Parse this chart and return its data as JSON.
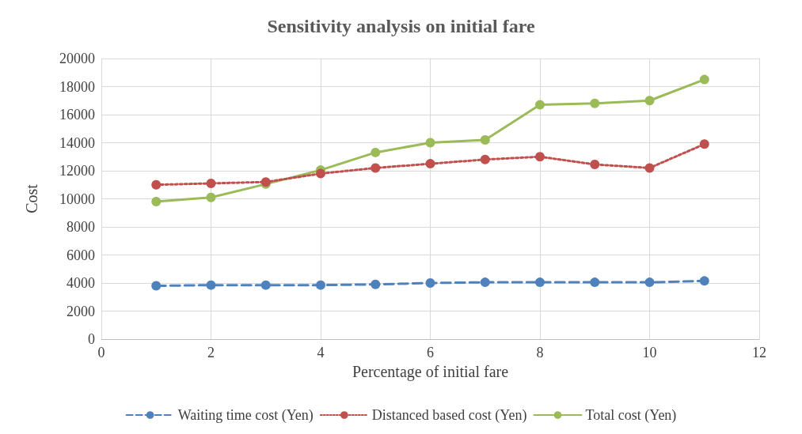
{
  "chart_data": {
    "type": "line",
    "title": "Sensitivity analysis on initial fare",
    "xlabel": "Percentage of initial fare",
    "ylabel": "Cost",
    "x": [
      1,
      2,
      3,
      4,
      5,
      6,
      7,
      8,
      9,
      10,
      11
    ],
    "xlim": [
      0,
      12
    ],
    "xticks": [
      0,
      2,
      4,
      6,
      8,
      10,
      12
    ],
    "ylim": [
      0,
      20000
    ],
    "yticks": [
      0,
      2000,
      4000,
      6000,
      8000,
      10000,
      12000,
      14000,
      16000,
      18000,
      20000
    ],
    "grid": true,
    "legend": "bottom",
    "marker": "circle",
    "series": [
      {
        "name": "Waiting time cost (Yen)",
        "color": "#4f81bd",
        "line_style": "dashed",
        "values": [
          3800,
          3850,
          3850,
          3850,
          3900,
          4000,
          4050,
          4050,
          4050,
          4050,
          4150
        ]
      },
      {
        "name": "Distanced based cost (Yen)",
        "color": "#c0504d",
        "line_style": "dotted",
        "values": [
          11000,
          11100,
          11200,
          11800,
          12200,
          12500,
          12800,
          13000,
          12450,
          12200,
          13900
        ]
      },
      {
        "name": "Total cost (Yen)",
        "color": "#9bbb59",
        "line_style": "solid",
        "values": [
          9800,
          10100,
          11050,
          12050,
          13300,
          14000,
          14200,
          16700,
          16800,
          17000,
          18500
        ]
      }
    ]
  }
}
